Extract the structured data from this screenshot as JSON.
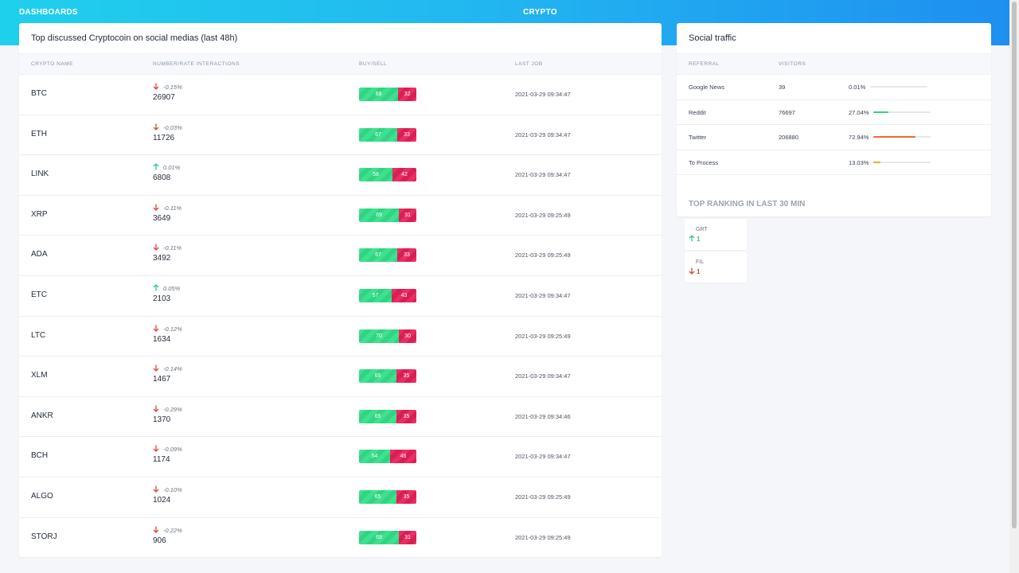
{
  "topbar": {
    "left_label": "DASHBOARDS",
    "center_label": "CRYPTO"
  },
  "crypto": {
    "title": "Top discussed Cryptocoin on social medias (last 48h)",
    "headers": [
      "CRYPTO NAME",
      "NUMBER/RATE INTERACTIONS",
      "BUY/SELL",
      "LAST JOB"
    ],
    "rows": [
      {
        "symbol": "BTC",
        "rate": "-0.15%",
        "dir": "down",
        "count": "26907",
        "buy": "68",
        "sell": "32",
        "buy_frac": 0.68,
        "date": "2021-03-29 09:34:47"
      },
      {
        "symbol": "ETH",
        "rate": "-0.03%",
        "dir": "down",
        "count": "11726",
        "buy": "67",
        "sell": "33",
        "buy_frac": 0.67,
        "date": "2021-03-29 09:34:47"
      },
      {
        "symbol": "LINK",
        "rate": "0.01%",
        "dir": "up",
        "count": "6808",
        "buy": "58",
        "sell": "42",
        "buy_frac": 0.58,
        "date": "2021-03-29 09:34:47"
      },
      {
        "symbol": "XRP",
        "rate": "-0.11%",
        "dir": "down",
        "count": "3649",
        "buy": "69",
        "sell": "31",
        "buy_frac": 0.69,
        "date": "2021-03-29 09:25:49"
      },
      {
        "symbol": "ADA",
        "rate": "-0.11%",
        "dir": "down",
        "count": "3492",
        "buy": "67",
        "sell": "33",
        "buy_frac": 0.67,
        "date": "2021-03-29 09:25:49"
      },
      {
        "symbol": "ETC",
        "rate": "0.05%",
        "dir": "up",
        "count": "2103",
        "buy": "57",
        "sell": "43",
        "buy_frac": 0.57,
        "date": "2021-03-29 09:34:47"
      },
      {
        "symbol": "LTC",
        "rate": "-0.12%",
        "dir": "down",
        "count": "1634",
        "buy": "70",
        "sell": "30",
        "buy_frac": 0.7,
        "date": "2021-03-29 09:25:49"
      },
      {
        "symbol": "XLM",
        "rate": "-0.14%",
        "dir": "down",
        "count": "1467",
        "buy": "65",
        "sell": "35",
        "buy_frac": 0.65,
        "date": "2021-03-29 09:34:47"
      },
      {
        "symbol": "ANKR",
        "rate": "-0.29%",
        "dir": "down",
        "count": "1370",
        "buy": "65",
        "sell": "35",
        "buy_frac": 0.65,
        "date": "2021-03-29 09:34:46"
      },
      {
        "symbol": "BCH",
        "rate": "-0.09%",
        "dir": "down",
        "count": "1174",
        "buy": "54",
        "sell": "46",
        "buy_frac": 0.54,
        "date": "2021-03-29 09:34:47"
      },
      {
        "symbol": "ALGO",
        "rate": "-0.10%",
        "dir": "down",
        "count": "1024",
        "buy": "65",
        "sell": "35",
        "buy_frac": 0.65,
        "date": "2021-03-29 09:25:49"
      },
      {
        "symbol": "STORJ",
        "rate": "-0.22%",
        "dir": "down",
        "count": "906",
        "buy": "69",
        "sell": "31",
        "buy_frac": 0.69,
        "date": "2021-03-29 09:25:49"
      }
    ]
  },
  "social": {
    "title": "Social traffic",
    "headers": [
      "REFERRAL",
      "VISITORS"
    ],
    "rows": [
      {
        "referral": "Google News",
        "visitors": "39",
        "pct": "0.01%",
        "frac": 0.0001,
        "color": "#22c55e"
      },
      {
        "referral": "Reddit",
        "visitors": "76697",
        "pct": "27.04%",
        "frac": 0.2704,
        "color": "#2ed47a"
      },
      {
        "referral": "Twitter",
        "visitors": "206880",
        "pct": "72.94%",
        "frac": 0.7294,
        "color": "#f06a2c"
      },
      {
        "referral": "To Process",
        "visitors": "",
        "pct": "13.03%",
        "frac": 0.1303,
        "color": "#f5a524"
      }
    ],
    "ranking_title": "TOP RANKING IN LAST 30 MIN",
    "ranking": [
      {
        "name": "GRT",
        "value": "1",
        "dir": "up"
      },
      {
        "name": "FIL",
        "value": "1",
        "dir": "down"
      }
    ]
  },
  "colors": {
    "up": "#2ec98a",
    "down": "#e0463a",
    "buy": "#3ee28e",
    "sell": "#ea2d62"
  }
}
